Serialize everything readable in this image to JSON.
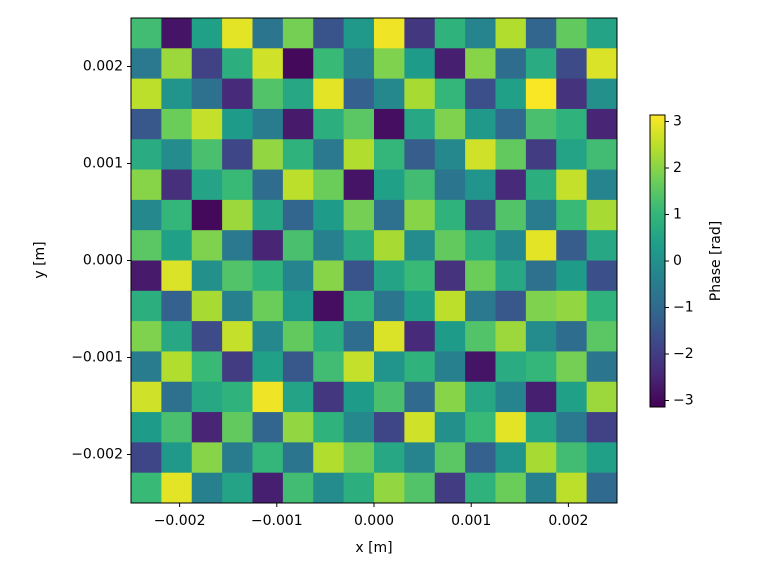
{
  "chart_data": {
    "type": "heatmap",
    "colormap": "viridis",
    "xlabel": "x [m]",
    "ylabel": "y [m]",
    "colorbar_label": "Phase [rad]",
    "xlim": [
      -0.0025,
      0.0025
    ],
    "ylim": [
      -0.0025,
      0.0025
    ],
    "zlim": [
      -3.14,
      3.14
    ],
    "xticks": [
      {
        "value": -0.002,
        "label": "−0.002"
      },
      {
        "value": -0.001,
        "label": "−0.001"
      },
      {
        "value": 0,
        "label": "0.000"
      },
      0.001,
      0.002
    ],
    "yticks": [
      {
        "value": -0.002,
        "label": "−0.002"
      },
      {
        "value": -0.001,
        "label": "−0.001"
      },
      {
        "value": 0,
        "label": "0.000"
      },
      0.001,
      0.002
    ],
    "zticks": [
      {
        "value": -3,
        "label": "−3"
      },
      {
        "value": -2,
        "label": "−2"
      },
      {
        "value": -1,
        "label": "−1"
      },
      0,
      1,
      2,
      3
    ],
    "z": [
      [
        1.2,
        -2.8,
        0.4,
        2.9,
        -0.7,
        1.8,
        -1.5,
        0.2,
        3.0,
        -2.1,
        0.9,
        -0.3,
        2.4,
        -1.1,
        1.6,
        0.5
      ],
      [
        -0.6,
        2.2,
        -1.9,
        0.8,
        2.7,
        -3.0,
        1.1,
        -0.4,
        1.9,
        0.3,
        -2.6,
        2.0,
        -0.9,
        0.7,
        -1.7,
        2.8
      ],
      [
        2.5,
        0.1,
        -0.8,
        -2.4,
        1.4,
        0.6,
        2.9,
        -1.2,
        -0.2,
        2.3,
        1.0,
        -1.6,
        0.4,
        3.1,
        -2.2,
        0.0
      ],
      [
        -1.4,
        1.7,
        2.6,
        0.3,
        -0.5,
        -2.7,
        0.8,
        1.5,
        -2.9,
        0.6,
        1.9,
        0.2,
        -1.0,
        1.3,
        0.9,
        -2.5
      ],
      [
        0.7,
        -0.1,
        1.3,
        -1.8,
        2.1,
        0.9,
        -0.6,
        2.4,
        1.0,
        -1.3,
        -0.2,
        2.7,
        1.6,
        -2.0,
        0.5,
        1.2
      ],
      [
        2.0,
        -2.3,
        0.5,
        1.1,
        -0.9,
        2.5,
        1.7,
        -2.8,
        0.4,
        1.2,
        -0.7,
        0.1,
        -2.4,
        0.8,
        2.6,
        -0.3
      ],
      [
        -0.2,
        1.0,
        -3.0,
        2.2,
        0.6,
        -1.1,
        0.3,
        1.8,
        -0.8,
        2.0,
        0.9,
        -1.9,
        1.4,
        -0.5,
        1.1,
        2.3
      ],
      [
        1.5,
        0.4,
        1.9,
        -0.6,
        -2.5,
        1.3,
        -0.4,
        0.7,
        2.3,
        -0.1,
        1.6,
        0.8,
        -0.2,
        2.9,
        -1.3,
        0.6
      ],
      [
        -2.7,
        2.8,
        0.0,
        1.4,
        0.9,
        -0.3,
        2.0,
        -1.5,
        0.5,
        1.1,
        -2.2,
        1.7,
        0.6,
        -0.8,
        0.3,
        -1.6
      ],
      [
        0.8,
        -1.2,
        2.3,
        -0.4,
        1.7,
        0.2,
        -2.9,
        1.0,
        -0.7,
        0.4,
        2.5,
        -0.6,
        -1.4,
        1.9,
        2.1,
        0.9
      ],
      [
        1.9,
        0.6,
        -1.7,
        2.6,
        -0.2,
        1.6,
        0.7,
        -0.9,
        2.8,
        -2.4,
        0.3,
        1.4,
        2.2,
        -0.1,
        -0.9,
        1.5
      ],
      [
        -0.5,
        2.4,
        1.1,
        -2.0,
        0.4,
        -1.4,
        1.2,
        2.6,
        0.1,
        0.9,
        -0.4,
        -2.8,
        0.7,
        1.0,
        1.8,
        -0.7
      ],
      [
        2.7,
        -0.8,
        0.6,
        0.9,
        3.0,
        0.5,
        -2.1,
        0.3,
        1.3,
        -1.0,
        2.0,
        0.6,
        -0.3,
        -2.6,
        0.4,
        2.2
      ],
      [
        0.3,
        1.3,
        -2.5,
        1.6,
        -1.1,
        2.1,
        0.9,
        -0.2,
        -1.8,
        2.7,
        0.0,
        1.1,
        2.9,
        0.5,
        -0.6,
        -1.9
      ],
      [
        -1.8,
        0.2,
        2.0,
        -0.5,
        1.0,
        -0.7,
        2.4,
        1.7,
        0.6,
        -0.3,
        1.5,
        -1.2,
        0.1,
        2.3,
        1.2,
        0.4
      ],
      [
        1.1,
        2.9,
        -0.4,
        0.5,
        -2.6,
        1.2,
        -0.1,
        0.8,
        2.1,
        1.4,
        -2.0,
        0.9,
        1.7,
        -0.4,
        2.5,
        -1.0
      ]
    ]
  }
}
